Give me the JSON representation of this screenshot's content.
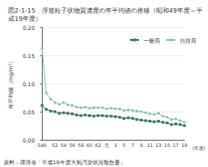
{
  "chart_data": {
    "type": "line",
    "title": "図2-1-15　浮遊粒子状物質濃度の年平均値の推移（昭和49年度～平成19年度）",
    "ylabel": "年平均値（mg/m³）",
    "xlabel": "(年度)",
    "source": "資料：環境省「平成19年度大気汚染状況報告書」",
    "categories": [
      "S49",
      null,
      null,
      "52",
      null,
      "54",
      null,
      "56",
      null,
      "58",
      null,
      "60",
      null,
      "62",
      null,
      "元",
      null,
      "3",
      null,
      "5",
      null,
      "7",
      null,
      "9",
      null,
      "11",
      null,
      "13",
      null,
      "15",
      null,
      "17",
      null,
      "19"
    ],
    "series": [
      {
        "name": "一般局",
        "color": "#3d7a5c",
        "marker": "square",
        "values": [
          0.061,
          0.054,
          0.051,
          0.05,
          0.047,
          0.048,
          0.047,
          0.046,
          0.044,
          0.043,
          0.044,
          0.043,
          0.042,
          0.043,
          0.043,
          0.042,
          0.042,
          0.041,
          0.04,
          0.038,
          0.039,
          0.038,
          0.036,
          0.035,
          0.034,
          0.033,
          0.032,
          0.033,
          0.031,
          0.03,
          0.027,
          0.028,
          0.027,
          0.025
        ]
      },
      {
        "name": "自排局",
        "color": "#8cc4a8",
        "marker": "circle",
        "values": [
          0.162,
          0.083,
          0.072,
          0.066,
          0.063,
          0.066,
          0.062,
          0.061,
          0.058,
          0.057,
          0.058,
          0.056,
          0.057,
          0.057,
          0.057,
          0.055,
          0.056,
          0.055,
          0.055,
          0.052,
          0.053,
          0.052,
          0.051,
          0.05,
          0.048,
          0.046,
          0.045,
          0.047,
          0.042,
          0.04,
          0.036,
          0.037,
          0.034,
          0.031
        ]
      }
    ],
    "ylim": [
      0,
      0.2
    ],
    "yticks": [
      {
        "value": 0,
        "label": "0.00"
      },
      {
        "value": 0.05,
        "label": "0.05"
      },
      {
        "value": 0.1,
        "label": "0.10"
      },
      {
        "value": 0.15,
        "label": "0.15"
      },
      {
        "value": 0.2,
        "label": "0.20"
      }
    ],
    "grid": true,
    "legend": "top-right"
  }
}
